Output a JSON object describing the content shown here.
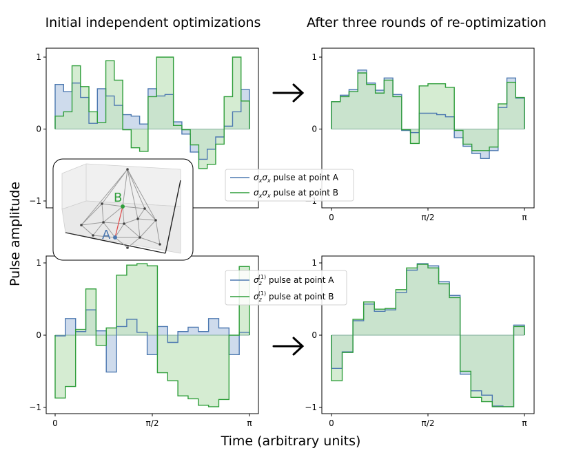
{
  "figure": {
    "col_titles": [
      "Initial independent optimizations",
      "After three rounds of re-optimization"
    ],
    "xlabel": "Time (arbitrary units)",
    "ylabel": "Pulse amplitude",
    "inset": {
      "point_a_label": "A",
      "point_b_label": "B"
    }
  },
  "colors": {
    "series_a": "#4c78b0",
    "series_b": "#2f9e3a",
    "fill_a": "#c9d7ea",
    "fill_b": "#c7e5c3"
  },
  "chart_data": [
    {
      "type": "step-area",
      "panel": "top-left",
      "xlim": [
        0,
        3.14159
      ],
      "ylim": [
        -1,
        1
      ],
      "xticks": [],
      "yticks": [
        {
          "v": 1,
          "label": "1"
        },
        {
          "v": 0,
          "label": "0"
        },
        {
          "v": -1,
          "label": "−1"
        }
      ],
      "series": [
        {
          "name": "A",
          "values": [
            0.62,
            0.52,
            0.64,
            0.44,
            0.08,
            0.56,
            0.46,
            0.33,
            0.2,
            0.18,
            0.07,
            0.56,
            0.46,
            0.48,
            0.1,
            -0.07,
            -0.32,
            -0.42,
            -0.28,
            -0.11,
            0.04,
            0.24,
            0.55
          ]
        },
        {
          "name": "B",
          "values": [
            0.18,
            0.24,
            0.88,
            0.59,
            0.24,
            0.09,
            0.95,
            0.68,
            -0.01,
            -0.26,
            -0.31,
            0.45,
            1.0,
            1.0,
            0.05,
            -0.01,
            -0.22,
            -0.55,
            -0.49,
            -0.21,
            0.45,
            1.0,
            0.39
          ]
        }
      ]
    },
    {
      "type": "step-area",
      "panel": "top-right",
      "xlim": [
        0,
        3.14159
      ],
      "ylim": [
        -1,
        1
      ],
      "xticks": [
        {
          "v": 0,
          "label": "0"
        },
        {
          "v": 1.5708,
          "label": "π/2"
        },
        {
          "v": 3.14159,
          "label": "π"
        }
      ],
      "yticks": [
        {
          "v": 1,
          "label": "1"
        },
        {
          "v": 0,
          "label": "0"
        },
        {
          "v": -1,
          "label": "−1"
        }
      ],
      "series": [
        {
          "name": "A",
          "values": [
            0.38,
            0.47,
            0.55,
            0.82,
            0.64,
            0.54,
            0.71,
            0.48,
            -0.02,
            -0.05,
            0.22,
            0.22,
            0.2,
            0.17,
            -0.12,
            -0.24,
            -0.34,
            -0.41,
            -0.3,
            0.3,
            0.71,
            0.43
          ]
        },
        {
          "name": "B",
          "values": [
            0.38,
            0.45,
            0.52,
            0.78,
            0.62,
            0.5,
            0.68,
            0.45,
            -0.01,
            -0.2,
            0.6,
            0.63,
            0.63,
            0.58,
            -0.02,
            -0.21,
            -0.3,
            -0.3,
            -0.25,
            0.35,
            0.65,
            0.44
          ]
        }
      ]
    },
    {
      "type": "step-area",
      "panel": "bottom-left",
      "xlim": [
        0,
        3.14159
      ],
      "ylim": [
        -1,
        1
      ],
      "xticks": [
        {
          "v": 0,
          "label": "0"
        },
        {
          "v": 1.5708,
          "label": "π/2"
        },
        {
          "v": 3.14159,
          "label": "π"
        }
      ],
      "yticks": [
        {
          "v": 1,
          "label": "1"
        },
        {
          "v": 0,
          "label": "0"
        },
        {
          "v": -1,
          "label": "−1"
        }
      ],
      "series": [
        {
          "name": "A",
          "values": [
            -0.01,
            0.23,
            0.05,
            0.35,
            0.06,
            -0.51,
            0.12,
            0.22,
            0.04,
            -0.27,
            0.12,
            -0.1,
            0.05,
            0.11,
            0.05,
            0.23,
            0.1,
            -0.27,
            0.04
          ]
        },
        {
          "name": "B",
          "values": [
            -0.87,
            -0.71,
            0.08,
            0.64,
            -0.14,
            0.1,
            0.83,
            0.97,
            0.99,
            0.96,
            -0.52,
            -0.63,
            -0.84,
            -0.88,
            -0.97,
            -0.99,
            -0.89,
            0.0,
            0.95
          ]
        }
      ]
    },
    {
      "type": "step-area",
      "panel": "bottom-right",
      "xlim": [
        0,
        3.14159
      ],
      "ylim": [
        -1,
        1
      ],
      "xticks": [
        {
          "v": 0,
          "label": "0"
        },
        {
          "v": 1.5708,
          "label": "π/2"
        },
        {
          "v": 3.14159,
          "label": "π"
        }
      ],
      "yticks": [
        {
          "v": 1,
          "label": "1"
        },
        {
          "v": 0,
          "label": "0"
        },
        {
          "v": -1,
          "label": "−1"
        }
      ],
      "series": [
        {
          "name": "A",
          "values": [
            -0.46,
            -0.23,
            0.2,
            0.43,
            0.33,
            0.35,
            0.59,
            0.9,
            0.99,
            0.96,
            0.74,
            0.55,
            -0.54,
            -0.77,
            -0.83,
            -0.98,
            -0.99,
            0.14
          ]
        },
        {
          "name": "B",
          "values": [
            -0.63,
            -0.24,
            0.22,
            0.46,
            0.36,
            0.37,
            0.63,
            0.93,
            0.98,
            0.93,
            0.71,
            0.52,
            -0.5,
            -0.86,
            -0.92,
            -0.99,
            -0.99,
            0.12
          ]
        }
      ]
    }
  ],
  "legends": {
    "top": {
      "a_prefix": "σ",
      "a_sub1": "x",
      "a_mid": "σ",
      "a_sub2": "x",
      "a_suffix": " pulse at point A",
      "b_suffix": " pulse at point B"
    },
    "bottom": {
      "sigma": "σ",
      "sub": "z",
      "sup": "(1)",
      "a_suffix": " pulse at point A",
      "b_suffix": " pulse at point B"
    }
  }
}
